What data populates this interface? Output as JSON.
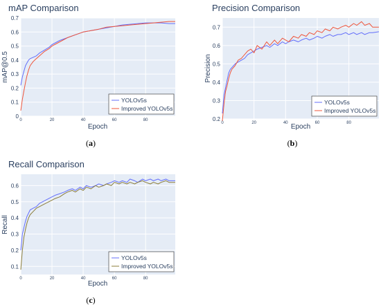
{
  "chart_data": [
    {
      "type": "line",
      "title": "mAP Comparison",
      "xlabel": "Epoch",
      "ylabel": "mAP@0.5",
      "caption_letter": "a",
      "xlim": [
        0,
        99
      ],
      "ylim": [
        0,
        0.7
      ],
      "yticks": [
        0,
        0.1,
        0.2,
        0.3,
        0.4,
        0.5,
        0.6,
        0.7
      ],
      "xticks": [
        0,
        20,
        40,
        60,
        80
      ],
      "legend": "bottom-right",
      "series": [
        {
          "name": "YOLOv5s",
          "color": "#636efa",
          "x": [
            0,
            1,
            2,
            3,
            4,
            5,
            6,
            8,
            10,
            12,
            15,
            18,
            20,
            25,
            30,
            35,
            40,
            45,
            50,
            55,
            60,
            65,
            70,
            75,
            80,
            85,
            90,
            95,
            99
          ],
          "values": [
            0.22,
            0.28,
            0.32,
            0.36,
            0.38,
            0.4,
            0.41,
            0.42,
            0.43,
            0.45,
            0.47,
            0.49,
            0.51,
            0.54,
            0.56,
            0.58,
            0.6,
            0.61,
            0.62,
            0.63,
            0.64,
            0.65,
            0.655,
            0.66,
            0.665,
            0.665,
            0.665,
            0.66,
            0.66
          ]
        },
        {
          "name": "Improved YOLOv5s",
          "color": "#ef553b",
          "x": [
            0,
            1,
            2,
            3,
            4,
            5,
            6,
            8,
            10,
            12,
            15,
            18,
            20,
            25,
            30,
            35,
            40,
            45,
            50,
            55,
            60,
            65,
            70,
            75,
            80,
            85,
            90,
            95,
            99
          ],
          "values": [
            0.04,
            0.12,
            0.18,
            0.24,
            0.29,
            0.33,
            0.36,
            0.39,
            0.41,
            0.43,
            0.46,
            0.48,
            0.5,
            0.53,
            0.56,
            0.58,
            0.6,
            0.61,
            0.62,
            0.635,
            0.64,
            0.645,
            0.65,
            0.655,
            0.66,
            0.665,
            0.67,
            0.675,
            0.675
          ]
        }
      ]
    },
    {
      "type": "line",
      "title": "Precision Comparison",
      "xlabel": "Epoch",
      "ylabel": "Precision",
      "caption_letter": "b",
      "xlim": [
        0,
        99
      ],
      "ylim": [
        0.2,
        0.75
      ],
      "yticks": [
        0.2,
        0.3,
        0.4,
        0.5,
        0.6,
        0.7
      ],
      "xticks": [
        0,
        20,
        40,
        60,
        80
      ],
      "legend": "bottom-right",
      "series": [
        {
          "name": "YOLOv5s",
          "color": "#636efa",
          "x": [
            0,
            1,
            2,
            3,
            4,
            5,
            6,
            8,
            10,
            12,
            14,
            16,
            18,
            20,
            22,
            25,
            28,
            30,
            33,
            35,
            38,
            40,
            42,
            45,
            48,
            50,
            53,
            55,
            58,
            60,
            63,
            65,
            68,
            70,
            73,
            75,
            78,
            80,
            83,
            85,
            88,
            90,
            93,
            95,
            99
          ],
          "values": [
            0.23,
            0.33,
            0.37,
            0.41,
            0.45,
            0.47,
            0.48,
            0.5,
            0.51,
            0.52,
            0.53,
            0.55,
            0.56,
            0.57,
            0.58,
            0.59,
            0.6,
            0.59,
            0.61,
            0.6,
            0.62,
            0.61,
            0.62,
            0.63,
            0.62,
            0.63,
            0.64,
            0.63,
            0.64,
            0.65,
            0.64,
            0.65,
            0.66,
            0.65,
            0.66,
            0.66,
            0.67,
            0.66,
            0.67,
            0.66,
            0.67,
            0.66,
            0.67,
            0.67,
            0.675
          ]
        },
        {
          "name": "Improved YOLOv5s",
          "color": "#ef553b",
          "x": [
            0,
            1,
            2,
            3,
            4,
            5,
            6,
            8,
            10,
            12,
            14,
            16,
            18,
            20,
            22,
            25,
            28,
            30,
            33,
            35,
            38,
            40,
            42,
            45,
            48,
            50,
            53,
            55,
            58,
            60,
            63,
            65,
            68,
            70,
            73,
            75,
            78,
            80,
            83,
            85,
            88,
            90,
            93,
            95,
            99
          ],
          "values": [
            0.19,
            0.28,
            0.35,
            0.38,
            0.42,
            0.45,
            0.47,
            0.49,
            0.52,
            0.53,
            0.55,
            0.57,
            0.58,
            0.56,
            0.6,
            0.58,
            0.62,
            0.6,
            0.63,
            0.61,
            0.64,
            0.63,
            0.62,
            0.65,
            0.64,
            0.66,
            0.65,
            0.67,
            0.66,
            0.68,
            0.67,
            0.69,
            0.68,
            0.7,
            0.69,
            0.7,
            0.71,
            0.7,
            0.72,
            0.71,
            0.73,
            0.71,
            0.72,
            0.7,
            0.7
          ]
        }
      ]
    },
    {
      "type": "line",
      "title": "Recall Comparison",
      "xlabel": "Epoch",
      "ylabel": "Recall",
      "caption_letter": "c",
      "xlim": [
        0,
        99
      ],
      "ylim": [
        0.05,
        0.67
      ],
      "yticks": [
        0.1,
        0.2,
        0.3,
        0.4,
        0.5,
        0.6
      ],
      "xticks": [
        0,
        20,
        40,
        60,
        80
      ],
      "legend": "bottom-right",
      "series": [
        {
          "name": "YOLOv5s",
          "color": "#636efa",
          "x": [
            0,
            1,
            2,
            3,
            4,
            5,
            6,
            8,
            10,
            12,
            14,
            16,
            18,
            20,
            22,
            25,
            28,
            30,
            33,
            35,
            38,
            40,
            42,
            45,
            48,
            50,
            53,
            55,
            58,
            60,
            63,
            65,
            68,
            70,
            73,
            75,
            78,
            80,
            83,
            85,
            88,
            90,
            93,
            95,
            99
          ],
          "values": [
            0.2,
            0.3,
            0.34,
            0.38,
            0.41,
            0.43,
            0.45,
            0.46,
            0.47,
            0.49,
            0.5,
            0.51,
            0.52,
            0.53,
            0.54,
            0.55,
            0.56,
            0.57,
            0.58,
            0.57,
            0.59,
            0.58,
            0.6,
            0.59,
            0.6,
            0.61,
            0.6,
            0.61,
            0.62,
            0.63,
            0.62,
            0.63,
            0.62,
            0.64,
            0.63,
            0.62,
            0.64,
            0.63,
            0.64,
            0.63,
            0.64,
            0.63,
            0.64,
            0.63,
            0.63
          ]
        },
        {
          "name": "Improved YOLOv5s",
          "color": "#8b7d3a",
          "x": [
            0,
            1,
            2,
            3,
            4,
            5,
            6,
            8,
            10,
            12,
            14,
            16,
            18,
            20,
            22,
            25,
            28,
            30,
            33,
            35,
            38,
            40,
            42,
            45,
            48,
            50,
            53,
            55,
            58,
            60,
            63,
            65,
            68,
            70,
            73,
            75,
            78,
            80,
            83,
            85,
            88,
            90,
            93,
            95,
            99
          ],
          "values": [
            0.08,
            0.2,
            0.28,
            0.33,
            0.37,
            0.4,
            0.42,
            0.44,
            0.46,
            0.47,
            0.48,
            0.49,
            0.5,
            0.51,
            0.52,
            0.53,
            0.55,
            0.56,
            0.57,
            0.56,
            0.58,
            0.57,
            0.59,
            0.58,
            0.6,
            0.59,
            0.6,
            0.61,
            0.6,
            0.62,
            0.61,
            0.62,
            0.61,
            0.62,
            0.61,
            0.62,
            0.63,
            0.62,
            0.61,
            0.62,
            0.61,
            0.62,
            0.63,
            0.62,
            0.62
          ]
        }
      ]
    }
  ]
}
